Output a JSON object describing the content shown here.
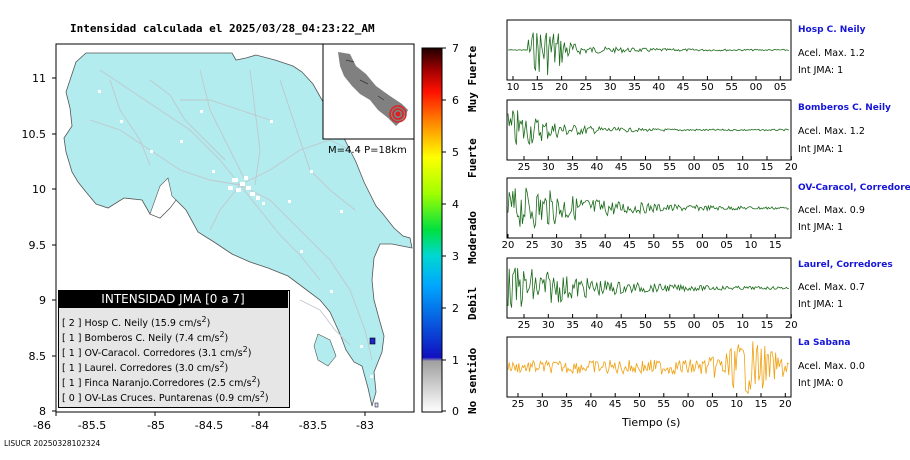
{
  "map": {
    "title": "Intensidad calculada el 2025/03/28_04:23:22_AM",
    "y_ticks": [
      "11",
      "10.5",
      "10",
      "9.5",
      "9",
      "8.5",
      "8"
    ],
    "x_ticks": [
      "-86",
      "-85.5",
      "-85",
      "-84.5",
      "-84",
      "-83.5",
      "-83"
    ],
    "inset_label": "M=4.4 P=18km",
    "colors": {
      "land": "#b2ecee",
      "inset_land": "#808080",
      "epicenter": "#e02020"
    }
  },
  "legend": {
    "title": "INTENSIDAD JMA [0 a 7]",
    "items": [
      {
        "bracket": "[ 2 ]",
        "text": "Hosp C. Neily (15.9 cm/s",
        "sup": "2",
        "close": ")"
      },
      {
        "bracket": "[ 1 ]",
        "text": "Bomberos C. Neily (7.4 cm/s",
        "sup": "2",
        "close": ")"
      },
      {
        "bracket": "[ 1 ]",
        "text": "OV-Caracol. Corredores (3.1 cm/s",
        "sup": "2",
        "close": ")"
      },
      {
        "bracket": "[ 1 ]",
        "text": "Laurel. Corredores (3.0 cm/s",
        "sup": "2",
        "close": ")"
      },
      {
        "bracket": "[ 1 ]",
        "text": "Finca Naranjo.Corredores (2.5 cm/s",
        "sup": "2",
        "close": ")"
      },
      {
        "bracket": "[ 0 ]",
        "text": "OV-Las Cruces. Puntarenas (0.9 cm/s",
        "sup": "2",
        "close": ")"
      }
    ]
  },
  "colorbar": {
    "ticks": [
      "7",
      "6",
      "5",
      "4",
      "3",
      "2",
      "1",
      "0"
    ],
    "categories": [
      "Muy Fuerte",
      "Fuerte",
      "Moderado",
      "Debil",
      "No sentido"
    ]
  },
  "stations": [
    {
      "name": "Hosp C. Neily",
      "acel": "Acel. Max. 1.2",
      "int": "Int JMA: 1",
      "color": "#1a6b1a",
      "ticks": [
        "10",
        "15",
        "20",
        "25",
        "30",
        "35",
        "40",
        "45",
        "50",
        "55",
        "00",
        "05"
      ]
    },
    {
      "name": "Bomberos C. Neily",
      "acel": "Acel. Max. 1.2",
      "int": "Int JMA: 1",
      "color": "#1a6b1a",
      "ticks": [
        "25",
        "30",
        "35",
        "40",
        "45",
        "50",
        "55",
        "00",
        "05",
        "10",
        "15",
        "20"
      ]
    },
    {
      "name": "OV-Caracol, Corredore",
      "acel": "Acel. Max. 0.9",
      "int": "Int JMA: 1",
      "color": "#1a6b1a",
      "ticks": [
        "20",
        "25",
        "30",
        "35",
        "40",
        "45",
        "50",
        "55",
        "00",
        "05",
        "10",
        "15"
      ]
    },
    {
      "name": "Laurel, Corredores",
      "acel": "Acel. Max. 0.7",
      "int": "Int JMA: 1",
      "color": "#1a6b1a",
      "ticks": [
        "25",
        "30",
        "35",
        "40",
        "45",
        "50",
        "55",
        "00",
        "05",
        "10",
        "15",
        "20"
      ]
    },
    {
      "name": "La Sabana",
      "acel": "Acel. Max. 0.0",
      "int": "Int JMA: 0",
      "color": "#f0a010",
      "ticks": [
        "25",
        "30",
        "35",
        "40",
        "45",
        "50",
        "55",
        "00",
        "05",
        "10",
        "15",
        "20"
      ]
    }
  ],
  "x_axis_label": "Tiempo (s)",
  "footer": "LISUCR 20250328102324"
}
